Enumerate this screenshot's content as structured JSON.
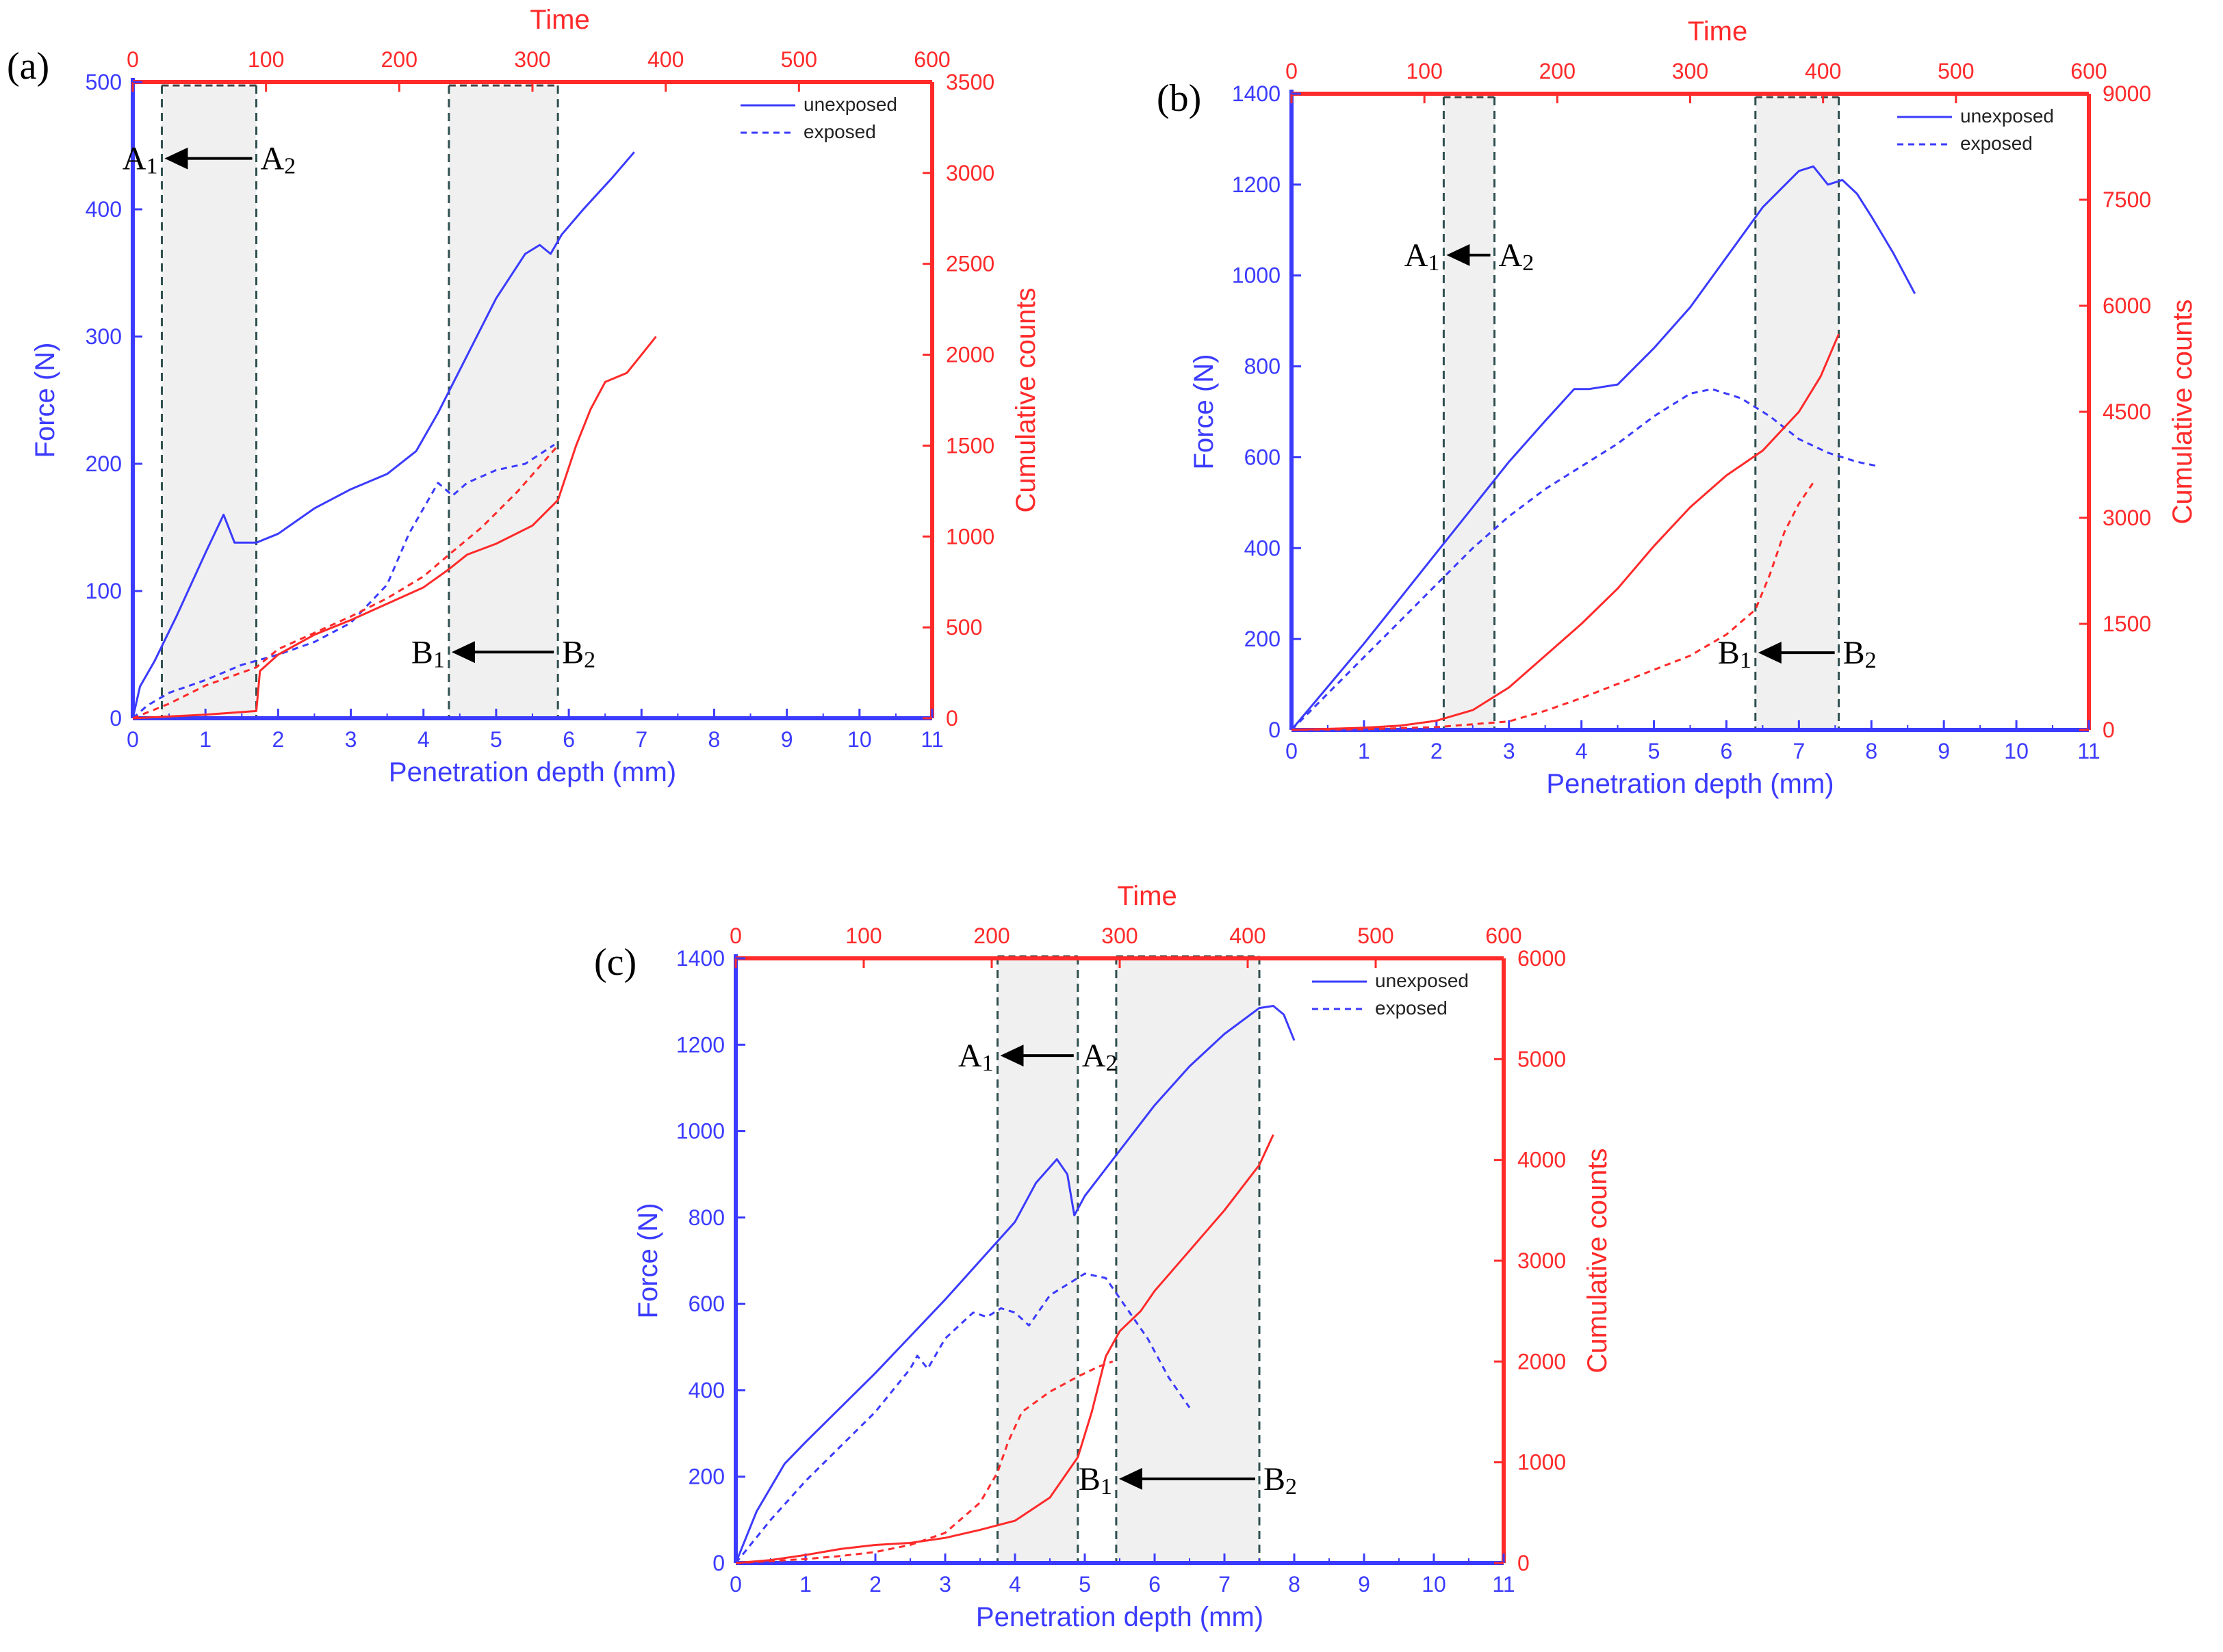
{
  "figure": {
    "panels": [
      "(a)",
      "(b)",
      "(c)"
    ],
    "colors": {
      "force": "#3b3bff",
      "counts": "#ff2a2a",
      "shade": "#dcdcdc",
      "marker": "#2f4f4f",
      "annotation": "#000000"
    }
  },
  "chart_data": [
    {
      "type": "line",
      "panel": "(a)",
      "xlabel": "Penetration depth (mm)",
      "xlim": [
        0,
        11
      ],
      "xticks": [
        "0",
        "1",
        "2",
        "3",
        "4",
        "5",
        "6",
        "7",
        "8",
        "9",
        "10",
        "11"
      ],
      "top_xlabel": "Time",
      "top_xlim": [
        0,
        600
      ],
      "top_xticks": [
        "0",
        "100",
        "200",
        "300",
        "400",
        "500",
        "600"
      ],
      "ylabel": "Force (N)",
      "ylim": [
        0,
        500
      ],
      "yticks": [
        "0",
        "100",
        "200",
        "300",
        "400",
        "500"
      ],
      "y2label": "Cumulative counts",
      "y2lim": [
        0,
        3500
      ],
      "y2ticks": [
        "0",
        "500",
        "1000",
        "1500",
        "2000",
        "2500",
        "3000",
        "3500"
      ],
      "legend": [
        "unexposed",
        "exposed"
      ],
      "legend_position": "top-right",
      "shaded_regions": [
        [
          0.4,
          1.7
        ],
        [
          4.35,
          5.85
        ]
      ],
      "annotations": [
        {
          "left": "A",
          "right": "A",
          "sub_left": "1",
          "sub_right": "2",
          "x1": 0.4,
          "x2": 1.7,
          "y": 440
        },
        {
          "left": "B",
          "right": "B",
          "sub_left": "1",
          "sub_right": "2",
          "x1": 4.35,
          "x2": 5.85,
          "y": 52
        }
      ],
      "series": [
        {
          "name": "unexposed",
          "axis": "force",
          "style": "solid",
          "x": [
            0,
            0.1,
            0.3,
            0.6,
            1.0,
            1.25,
            1.4,
            1.7,
            2.0,
            2.5,
            3.0,
            3.5,
            3.9,
            4.2,
            4.6,
            5.0,
            5.4,
            5.6,
            5.75,
            5.9,
            6.2,
            6.6,
            6.9
          ],
          "y": [
            0,
            25,
            45,
            80,
            130,
            160,
            138,
            138,
            145,
            165,
            180,
            192,
            210,
            240,
            285,
            330,
            365,
            372,
            365,
            380,
            400,
            425,
            445
          ]
        },
        {
          "name": "exposed",
          "axis": "force",
          "style": "dashed",
          "x": [
            0,
            0.2,
            0.5,
            1.0,
            1.5,
            2.0,
            2.5,
            3.0,
            3.5,
            3.8,
            4.2,
            4.4,
            4.6,
            5.0,
            5.4,
            5.8
          ],
          "y": [
            0,
            10,
            20,
            30,
            42,
            50,
            60,
            75,
            105,
            145,
            185,
            175,
            185,
            195,
            200,
            215
          ]
        },
        {
          "name": "unexposed",
          "axis": "counts",
          "style": "solid",
          "x": [
            0,
            1.0,
            1.7,
            1.75,
            2.0,
            2.5,
            3.0,
            3.5,
            4.0,
            4.35,
            4.6,
            5.0,
            5.5,
            5.85,
            6.1,
            6.3,
            6.5,
            6.8,
            7.0,
            7.2
          ],
          "y": [
            0,
            20,
            40,
            260,
            350,
            460,
            540,
            630,
            720,
            820,
            900,
            960,
            1060,
            1200,
            1500,
            1700,
            1850,
            1900,
            2000,
            2100
          ]
        },
        {
          "name": "exposed",
          "axis": "counts",
          "style": "dashed",
          "x": [
            0,
            0.5,
            1.0,
            1.7,
            2.0,
            2.5,
            3.0,
            3.5,
            4.0,
            4.35,
            4.8,
            5.3,
            5.85
          ],
          "y": [
            0,
            80,
            180,
            280,
            380,
            470,
            560,
            660,
            780,
            900,
            1050,
            1250,
            1500
          ]
        }
      ]
    },
    {
      "type": "line",
      "panel": "(b)",
      "xlabel": "Penetration depth (mm)",
      "xlim": [
        0,
        11
      ],
      "xticks": [
        "0",
        "1",
        "2",
        "3",
        "4",
        "5",
        "6",
        "7",
        "8",
        "9",
        "10",
        "11"
      ],
      "top_xlabel": "Time",
      "top_xlim": [
        0,
        600
      ],
      "top_xticks": [
        "0",
        "100",
        "200",
        "300",
        "400",
        "500",
        "600"
      ],
      "ylabel": "Force (N)",
      "ylim": [
        0,
        1400
      ],
      "yticks": [
        "0",
        "200",
        "400",
        "600",
        "800",
        "1000",
        "1200",
        "1400"
      ],
      "y2label": "Cumulative counts",
      "y2lim": [
        0,
        9000
      ],
      "y2ticks": [
        "0",
        "1500",
        "3000",
        "4500",
        "6000",
        "7500",
        "9000"
      ],
      "legend": [
        "unexposed",
        "exposed"
      ],
      "legend_position": "top-right",
      "shaded_regions": [
        [
          2.1,
          2.8
        ],
        [
          6.4,
          7.55
        ]
      ],
      "annotations": [
        {
          "left": "A",
          "right": "A",
          "sub_left": "1",
          "sub_right": "2",
          "x1": 2.1,
          "x2": 2.8,
          "y": 1045
        },
        {
          "left": "B",
          "right": "B",
          "sub_left": "1",
          "sub_right": "2",
          "x1": 6.4,
          "x2": 7.55,
          "y": 170
        }
      ],
      "series": [
        {
          "name": "unexposed",
          "axis": "force",
          "style": "solid",
          "x": [
            0,
            0.5,
            1.0,
            1.5,
            2.0,
            2.5,
            3.0,
            3.5,
            3.9,
            4.1,
            4.5,
            5.0,
            5.5,
            6.0,
            6.5,
            7.0,
            7.2,
            7.4,
            7.6,
            7.8,
            8.0,
            8.3,
            8.6
          ],
          "y": [
            0,
            95,
            190,
            290,
            390,
            490,
            590,
            680,
            750,
            750,
            760,
            840,
            930,
            1040,
            1150,
            1230,
            1240,
            1200,
            1210,
            1180,
            1130,
            1050,
            960
          ]
        },
        {
          "name": "exposed",
          "axis": "force",
          "style": "dashed",
          "x": [
            0,
            0.5,
            1.0,
            1.5,
            2.0,
            2.5,
            3.0,
            3.5,
            4.0,
            4.5,
            5.0,
            5.5,
            5.8,
            6.2,
            6.6,
            7.0,
            7.4,
            7.8,
            8.1
          ],
          "y": [
            0,
            80,
            160,
            240,
            320,
            400,
            470,
            530,
            580,
            630,
            690,
            740,
            750,
            730,
            690,
            640,
            610,
            590,
            580
          ]
        },
        {
          "name": "unexposed",
          "axis": "counts",
          "style": "solid",
          "x": [
            0,
            1.0,
            1.5,
            2.0,
            2.5,
            3.0,
            3.5,
            4.0,
            4.5,
            5.0,
            5.5,
            6.0,
            6.5,
            7.0,
            7.3,
            7.55
          ],
          "y": [
            0,
            30,
            60,
            130,
            280,
            600,
            1050,
            1500,
            2000,
            2600,
            3150,
            3600,
            3950,
            4500,
            5000,
            5600
          ]
        },
        {
          "name": "exposed",
          "axis": "counts",
          "style": "dashed",
          "x": [
            0,
            1.0,
            2.0,
            3.0,
            3.5,
            4.0,
            4.5,
            5.0,
            5.5,
            6.0,
            6.4,
            6.6,
            6.8,
            7.0,
            7.2
          ],
          "y": [
            0,
            10,
            40,
            120,
            270,
            450,
            650,
            850,
            1050,
            1350,
            1700,
            2200,
            2800,
            3200,
            3500
          ]
        }
      ]
    },
    {
      "type": "line",
      "panel": "(c)",
      "xlabel": "Penetration depth (mm)",
      "xlim": [
        0,
        11
      ],
      "xticks": [
        "0",
        "1",
        "2",
        "3",
        "4",
        "5",
        "6",
        "7",
        "8",
        "9",
        "10",
        "11"
      ],
      "top_xlabel": "Time",
      "top_xlim": [
        0,
        600
      ],
      "top_xticks": [
        "0",
        "100",
        "200",
        "300",
        "400",
        "500",
        "600"
      ],
      "ylabel": "Force (N)",
      "ylim": [
        0,
        1400
      ],
      "yticks": [
        "0",
        "200",
        "400",
        "600",
        "800",
        "1000",
        "1200",
        "1400"
      ],
      "y2label": "Cumulative counts",
      "y2lim": [
        0,
        6000
      ],
      "y2ticks": [
        "0",
        "1000",
        "2000",
        "3000",
        "4000",
        "5000",
        "6000"
      ],
      "legend": [
        "unexposed",
        "exposed"
      ],
      "legend_position": "top-right",
      "shaded_regions": [
        [
          3.75,
          4.9
        ],
        [
          5.45,
          7.5
        ]
      ],
      "annotations": [
        {
          "left": "A",
          "right": "A",
          "sub_left": "1",
          "sub_right": "2",
          "x1": 3.75,
          "x2": 4.9,
          "y": 1175
        },
        {
          "left": "B",
          "right": "B",
          "sub_left": "1",
          "sub_right": "2",
          "x1": 5.45,
          "x2": 7.5,
          "y": 195
        }
      ],
      "series": [
        {
          "name": "unexposed",
          "axis": "force",
          "style": "solid",
          "x": [
            0,
            0.3,
            0.7,
            1.0,
            1.5,
            2.0,
            2.5,
            3.0,
            3.5,
            4.0,
            4.3,
            4.6,
            4.75,
            4.85,
            5.0,
            5.5,
            6.0,
            6.5,
            7.0,
            7.5,
            7.7,
            7.85,
            8.0
          ],
          "y": [
            0,
            120,
            230,
            280,
            360,
            440,
            525,
            610,
            700,
            790,
            880,
            935,
            900,
            805,
            850,
            955,
            1060,
            1150,
            1225,
            1285,
            1290,
            1270,
            1210
          ]
        },
        {
          "name": "exposed",
          "axis": "force",
          "style": "dashed",
          "x": [
            0,
            0.5,
            1.0,
            1.5,
            2.0,
            2.5,
            2.6,
            2.75,
            3.0,
            3.4,
            3.6,
            3.8,
            4.0,
            4.2,
            4.5,
            5.0,
            5.3,
            5.6,
            5.9,
            6.2,
            6.5
          ],
          "y": [
            0,
            100,
            190,
            270,
            350,
            450,
            480,
            450,
            520,
            580,
            570,
            590,
            580,
            550,
            620,
            670,
            660,
            590,
            520,
            430,
            360
          ]
        },
        {
          "name": "unexposed",
          "axis": "counts",
          "style": "solid",
          "x": [
            0,
            0.5,
            1.0,
            1.5,
            2.0,
            2.5,
            3.0,
            3.5,
            4.0,
            4.5,
            4.9,
            5.1,
            5.3,
            5.5,
            5.8,
            6.0,
            6.5,
            7.0,
            7.5,
            7.7
          ],
          "y": [
            0,
            30,
            80,
            140,
            180,
            200,
            250,
            330,
            420,
            650,
            1050,
            1500,
            2050,
            2300,
            2500,
            2700,
            3100,
            3500,
            3950,
            4250
          ]
        },
        {
          "name": "exposed",
          "axis": "counts",
          "style": "dashed",
          "x": [
            0,
            0.5,
            1.0,
            1.5,
            2.0,
            2.5,
            3.0,
            3.5,
            3.75,
            3.9,
            4.1,
            4.5,
            4.9,
            5.2,
            5.4
          ],
          "y": [
            0,
            20,
            40,
            70,
            110,
            180,
            300,
            600,
            900,
            1200,
            1500,
            1700,
            1850,
            1950,
            2000
          ]
        }
      ]
    }
  ]
}
